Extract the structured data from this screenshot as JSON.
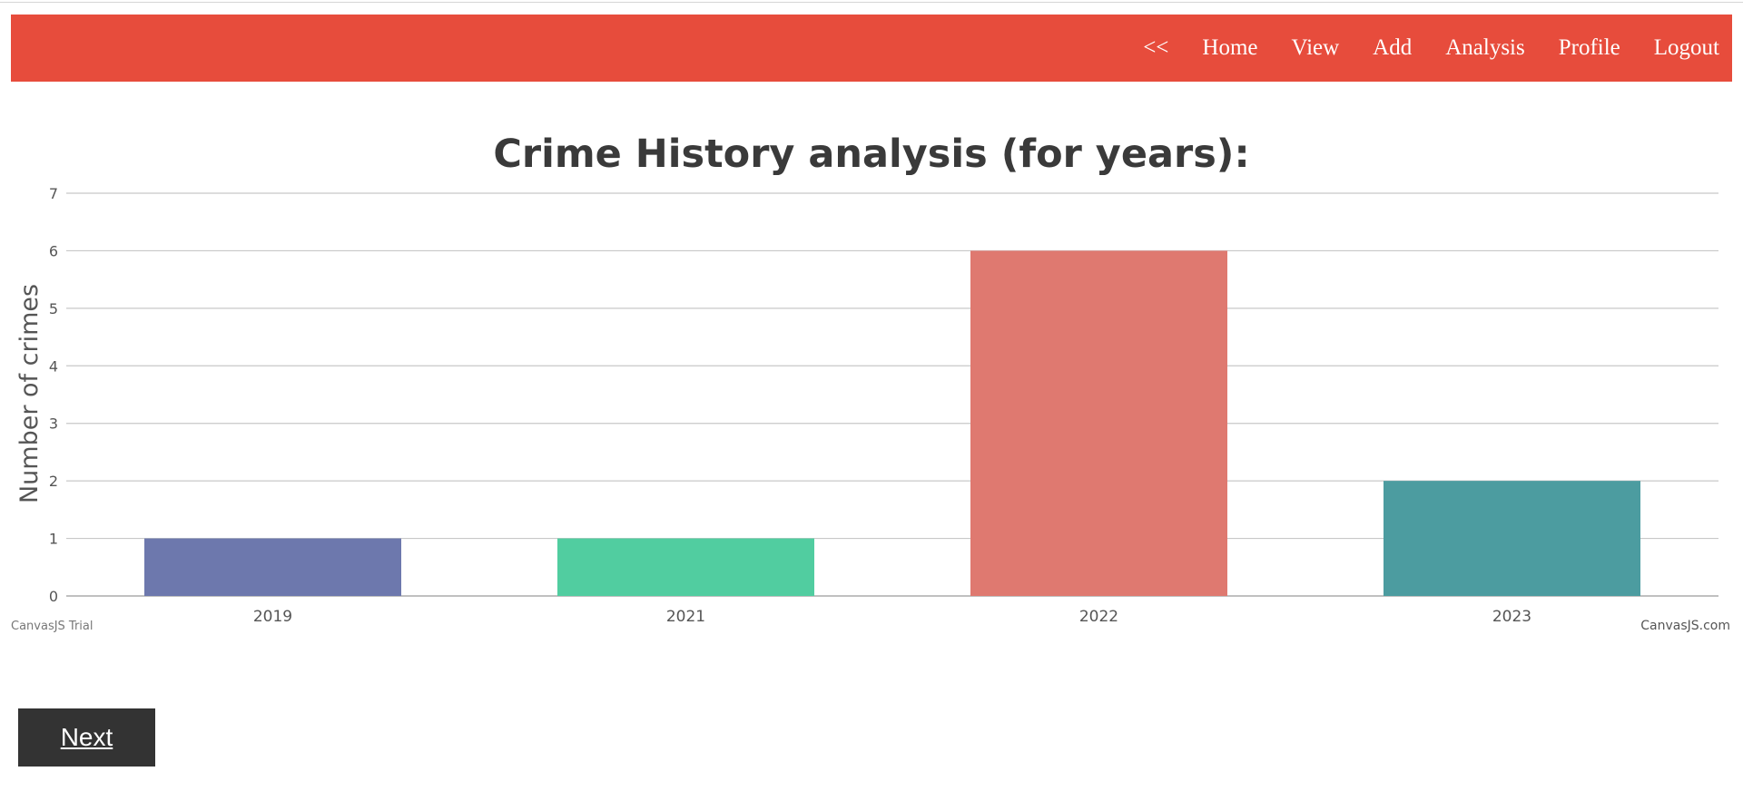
{
  "nav": {
    "back": "<<",
    "home": "Home",
    "view": "View",
    "add": "Add",
    "analysis": "Analysis",
    "profile": "Profile",
    "logout": "Logout"
  },
  "colors": {
    "navbar": "#e74c3c",
    "button": "#333333"
  },
  "chart_data": {
    "type": "bar",
    "title": "Crime History analysis (for years):",
    "ylabel": "Number of crimes",
    "xlabel": "",
    "categories": [
      "2019",
      "2021",
      "2022",
      "2023"
    ],
    "values": [
      1,
      1,
      6,
      2
    ],
    "colors": [
      "#6d78ad",
      "#51cda0",
      "#df7970",
      "#4c9ca0"
    ],
    "ylim": [
      0,
      7
    ],
    "yticks": [
      0,
      1,
      2,
      3,
      4,
      5,
      6,
      7
    ],
    "grid": true,
    "watermark_left": "CanvasJS Trial",
    "watermark_right": "CanvasJS.com"
  },
  "next_button": {
    "label": "Next"
  }
}
